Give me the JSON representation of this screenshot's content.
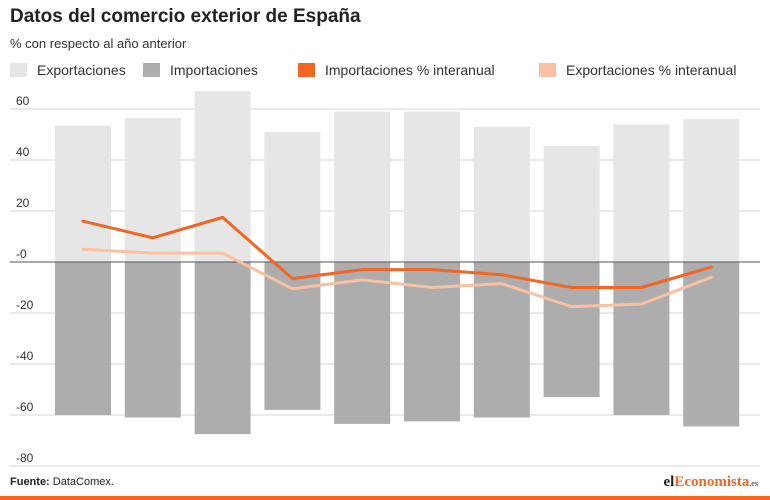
{
  "header": {
    "title": "Datos del comercio exterior de España",
    "subtitle": "% con respecto al año anterior"
  },
  "legend": [
    {
      "label": "Exportaciones",
      "kind": "box",
      "color": "#e6e6e6"
    },
    {
      "label": "Importaciones",
      "kind": "box",
      "color": "#adadad"
    },
    {
      "label": "Importaciones % interanual",
      "kind": "line",
      "color": "#f26522"
    },
    {
      "label": "Exportaciones % interanual",
      "kind": "line",
      "color": "#f9c0a2"
    }
  ],
  "footer": {
    "source_label": "Fuente:",
    "source_value": "DataComex.",
    "logo_prefix": "el",
    "logo_accent": "Economista",
    "logo_suffix": ".es"
  },
  "chart_data": {
    "type": "bar",
    "ylim": [
      -80,
      70
    ],
    "yticks": [
      60,
      40,
      20,
      0,
      -20,
      -40,
      -60,
      -80
    ],
    "ytick_labels": [
      "60",
      "40",
      "20",
      "-0",
      "-20",
      "-40",
      "-60",
      "-80"
    ],
    "xlabel": "",
    "ylabel": "",
    "grid": true,
    "legend_position": "top",
    "series": [
      {
        "name": "Exportaciones",
        "kind": "bar",
        "color": "#e6e6e6",
        "values": [
          53.5,
          56.5,
          67,
          51,
          59,
          59,
          53,
          45.5,
          54,
          56
        ]
      },
      {
        "name": "Importaciones",
        "kind": "bar",
        "color": "#adadad",
        "values": [
          -60,
          -61,
          -67.5,
          -58,
          -63.5,
          -62.5,
          -61,
          -53,
          -60,
          -64.5
        ]
      },
      {
        "name": "Importaciones % interanual",
        "kind": "line",
        "color": "#f26522",
        "values": [
          16,
          9.5,
          17.5,
          -6.5,
          -3,
          -3,
          -5,
          -10,
          -10,
          -2
        ]
      },
      {
        "name": "Exportaciones % interanual",
        "kind": "line",
        "color": "#f9c0a2",
        "values": [
          5,
          3.5,
          3.5,
          -10.5,
          -7,
          -10,
          -8.5,
          -17.5,
          -16.5,
          -6
        ]
      }
    ]
  }
}
